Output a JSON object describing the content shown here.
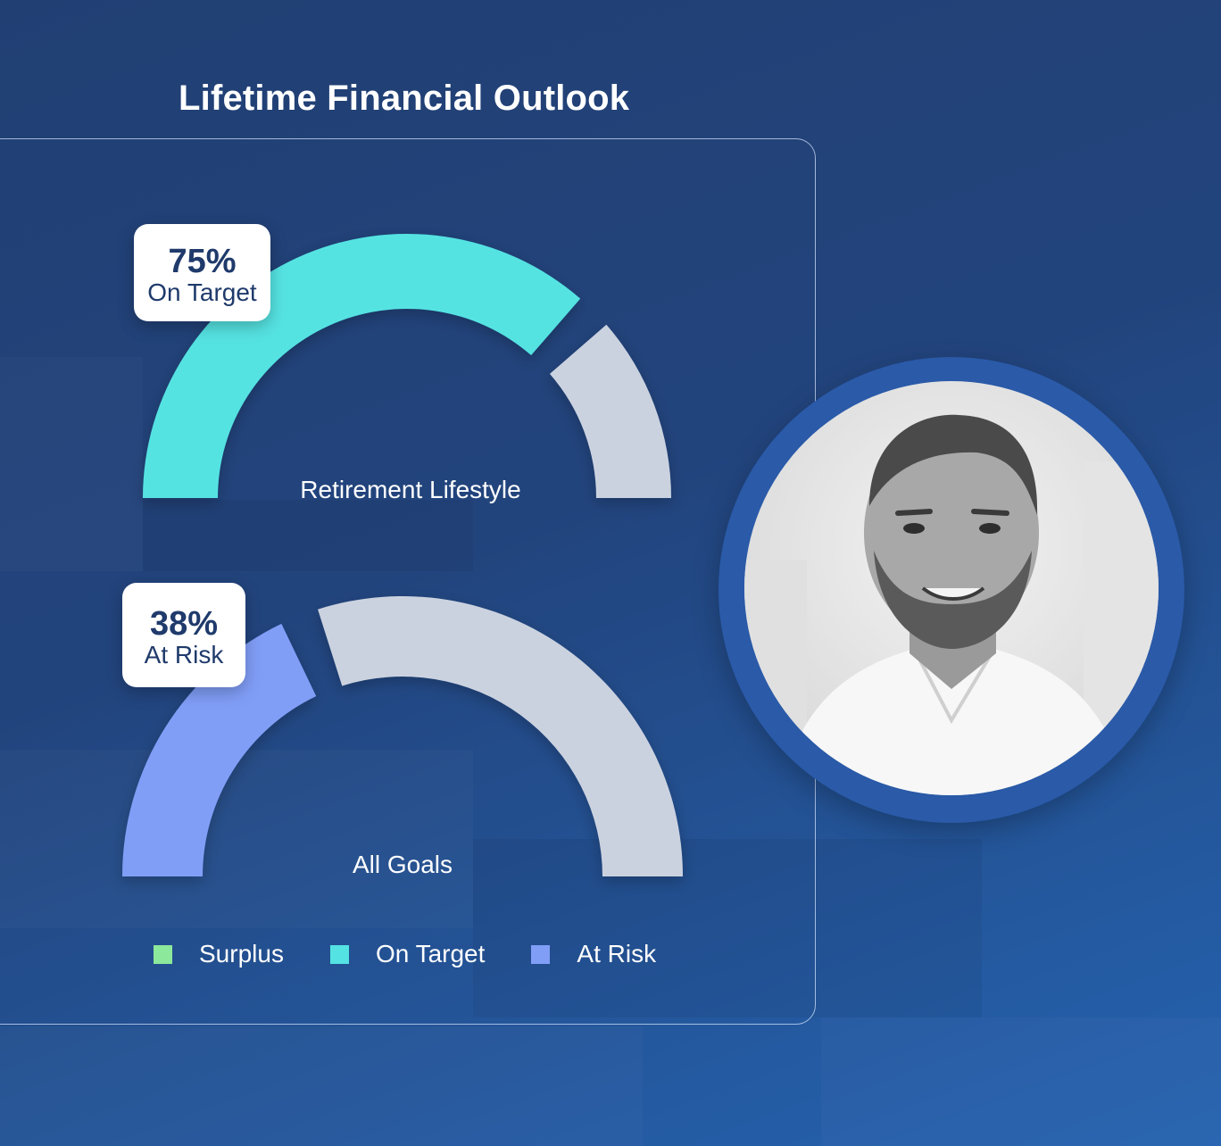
{
  "title": "Lifetime Financial Outlook",
  "chart_data": [
    {
      "type": "gauge",
      "label": "Retirement Lifestyle",
      "value": 75,
      "value_text": "75%",
      "status": "On Target",
      "filled_color": "#54e3e2",
      "remaining_color": "#cbd2df"
    },
    {
      "type": "gauge",
      "label": "All Goals",
      "value": 38,
      "value_text": "38%",
      "status": "At Risk",
      "filled_color": "#819ef7",
      "remaining_color": "#cbd2df"
    }
  ],
  "legend": [
    {
      "label": "Surplus",
      "color": "#8ce89a"
    },
    {
      "label": "On Target",
      "color": "#54e3e2"
    },
    {
      "label": "At Risk",
      "color": "#819ef7"
    }
  ],
  "photo": {
    "icon": "person-portrait-icon"
  }
}
